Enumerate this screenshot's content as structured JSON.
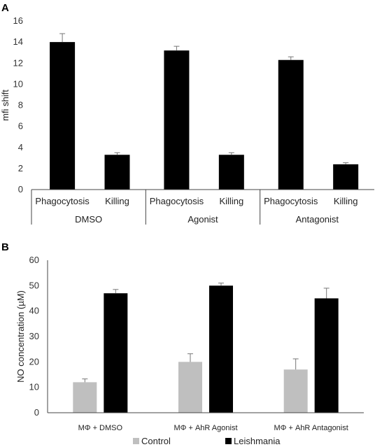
{
  "chart_data": [
    {
      "panel_label": "A",
      "type": "bar",
      "ylabel": "mfi shift",
      "ylim": [
        0,
        16
      ],
      "yticks": [
        0,
        2,
        4,
        6,
        8,
        10,
        12,
        14,
        16
      ],
      "groups": [
        {
          "name": "DMSO",
          "bars": [
            {
              "category": "Phagocytosis",
              "value": 14.0,
              "error": 0.8
            },
            {
              "category": "Killing",
              "value": 3.3,
              "error": 0.2
            }
          ]
        },
        {
          "name": "Agonist",
          "bars": [
            {
              "category": "Phagocytosis",
              "value": 13.2,
              "error": 0.4
            },
            {
              "category": "Killing",
              "value": 3.3,
              "error": 0.2
            }
          ]
        },
        {
          "name": "Antagonist",
          "bars": [
            {
              "category": "Phagocytosis",
              "value": 12.3,
              "error": 0.3
            },
            {
              "category": "Killing",
              "value": 2.4,
              "error": 0.15
            }
          ]
        }
      ],
      "colors": {
        "bar": "#000000",
        "error": "#777777"
      }
    },
    {
      "panel_label": "B",
      "type": "bar",
      "ylabel": "NO concentration (µM)",
      "ylim": [
        0,
        60
      ],
      "yticks": [
        0,
        10,
        20,
        30,
        40,
        50,
        60
      ],
      "categories": [
        "MΦ + DMSO",
        "MΦ + AhR Agonist",
        "MΦ + AhR Antagonist"
      ],
      "series": [
        {
          "name": "Control",
          "color": "#bfbfbf",
          "values": [
            12,
            20,
            17
          ],
          "errors": [
            1.3,
            3.2,
            4.2
          ]
        },
        {
          "name": "Leishmania",
          "color": "#000000",
          "values": [
            47,
            50,
            45
          ],
          "errors": [
            1.5,
            1.0,
            4.0
          ]
        }
      ],
      "legend_position": "bottom"
    }
  ]
}
